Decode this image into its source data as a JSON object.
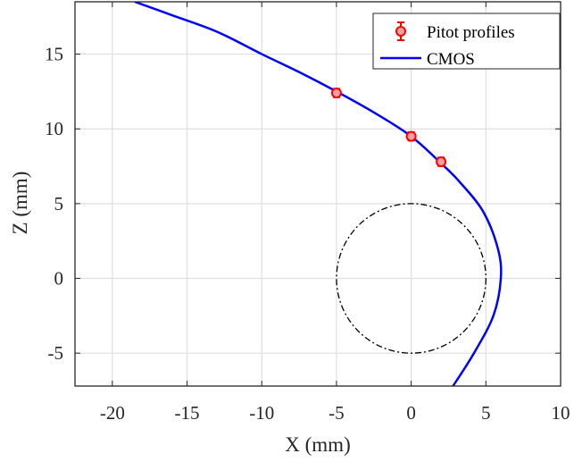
{
  "chart_data": {
    "type": "scatter",
    "xlabel": "X (mm)",
    "ylabel": "Z (mm)",
    "xlim": [
      -22.5,
      10
    ],
    "ylim": [
      -7.2,
      18.5
    ],
    "xticks": [
      -20,
      -15,
      -10,
      -5,
      0,
      5,
      10
    ],
    "yticks": [
      -5,
      0,
      5,
      10,
      15
    ],
    "grid": true,
    "legend_position": "top-right",
    "series": [
      {
        "name": "Pitot profiles",
        "kind": "points-with-errorbars",
        "color": "#ff0000",
        "points": [
          {
            "x": -5,
            "y": 12.4
          },
          {
            "x": 0,
            "y": 9.5
          },
          {
            "x": 2,
            "y": 7.8
          }
        ]
      },
      {
        "name": "CMOS",
        "kind": "line",
        "color": "#0000ff",
        "points": [
          {
            "x": 2.8,
            "y": -7.2
          },
          {
            "x": 4.2,
            "y": -5.0
          },
          {
            "x": 5.5,
            "y": -2.5
          },
          {
            "x": 6.0,
            "y": 0.0
          },
          {
            "x": 5.8,
            "y": 2.0
          },
          {
            "x": 4.8,
            "y": 4.5
          },
          {
            "x": 3.2,
            "y": 6.5
          },
          {
            "x": 2.0,
            "y": 7.7
          },
          {
            "x": 0.0,
            "y": 9.5
          },
          {
            "x": -2.5,
            "y": 11.1
          },
          {
            "x": -5.0,
            "y": 12.5
          },
          {
            "x": -7.5,
            "y": 13.8
          },
          {
            "x": -10.0,
            "y": 15.0
          },
          {
            "x": -13.0,
            "y": 16.5
          },
          {
            "x": -16.0,
            "y": 17.6
          },
          {
            "x": -18.5,
            "y": 18.5
          }
        ]
      },
      {
        "kind": "circle",
        "color": "#000000",
        "center": {
          "x": 0,
          "y": 0
        },
        "radius": 5
      }
    ]
  }
}
